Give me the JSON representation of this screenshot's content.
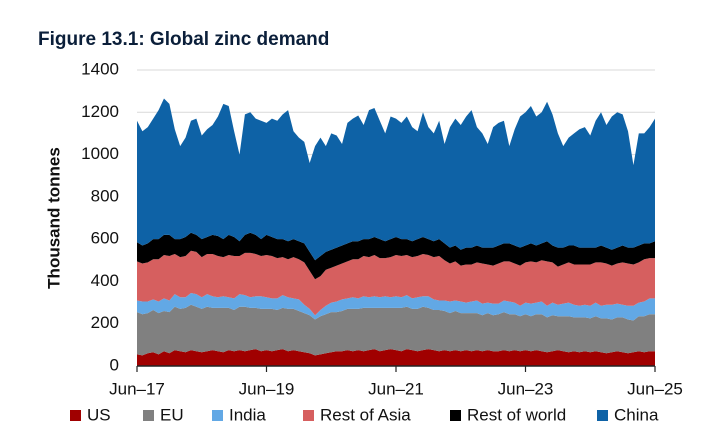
{
  "chart_data": {
    "type": "stacked-area",
    "title": "Figure 13.1: Global zinc demand",
    "y_label": "Thousand tonnes",
    "categories": [
      "Jun–17",
      null,
      null,
      null,
      null,
      null,
      null,
      null,
      null,
      null,
      null,
      null,
      null,
      null,
      null,
      null,
      null,
      null,
      null,
      null,
      null,
      null,
      null,
      null,
      "Jun–19",
      null,
      null,
      null,
      null,
      null,
      null,
      null,
      null,
      null,
      null,
      null,
      null,
      null,
      null,
      null,
      null,
      null,
      null,
      null,
      null,
      null,
      null,
      null,
      "Jun–21",
      null,
      null,
      null,
      null,
      null,
      null,
      null,
      null,
      null,
      null,
      null,
      null,
      null,
      null,
      null,
      null,
      null,
      null,
      null,
      null,
      null,
      null,
      null,
      "Jun–23",
      null,
      null,
      null,
      null,
      null,
      null,
      null,
      null,
      null,
      null,
      null,
      null,
      null,
      null,
      null,
      null,
      null,
      null,
      null,
      null,
      null,
      null,
      null,
      "Jun–25"
    ],
    "series": [
      {
        "name": "US",
        "color": "#a00000",
        "values": [
          55,
          50,
          60,
          65,
          55,
          70,
          60,
          75,
          70,
          65,
          75,
          70,
          65,
          70,
          75,
          70,
          65,
          75,
          70,
          75,
          70,
          75,
          80,
          70,
          75,
          70,
          75,
          80,
          70,
          75,
          70,
          65,
          60,
          50,
          55,
          60,
          65,
          70,
          70,
          75,
          70,
          75,
          70,
          75,
          80,
          70,
          75,
          80,
          75,
          70,
          80,
          75,
          70,
          75,
          80,
          75,
          70,
          75,
          70,
          75,
          70,
          75,
          70,
          75,
          70,
          75,
          70,
          70,
          75,
          70,
          75,
          70,
          75,
          70,
          75,
          70,
          65,
          70,
          75,
          70,
          65,
          70,
          65,
          70,
          65,
          70,
          65,
          60,
          65,
          70,
          65,
          60,
          65,
          70,
          65,
          70,
          70
        ]
      },
      {
        "name": "EU",
        "color": "#808080",
        "values": [
          200,
          195,
          190,
          200,
          195,
          190,
          195,
          205,
          200,
          210,
          215,
          210,
          205,
          210,
          200,
          205,
          210,
          200,
          195,
          205,
          210,
          200,
          195,
          200,
          195,
          200,
          190,
          195,
          200,
          195,
          190,
          185,
          180,
          170,
          180,
          185,
          190,
          185,
          190,
          195,
          200,
          195,
          205,
          200,
          195,
          205,
          200,
          195,
          200,
          205,
          200,
          195,
          200,
          205,
          195,
          190,
          195,
          185,
          180,
          185,
          180,
          175,
          180,
          175,
          170,
          175,
          170,
          175,
          180,
          175,
          170,
          165,
          170,
          165,
          170,
          175,
          165,
          170,
          160,
          165,
          170,
          160,
          165,
          160,
          160,
          165,
          160,
          165,
          155,
          160,
          165,
          160,
          150,
          165,
          170,
          175,
          175
        ]
      },
      {
        "name": "India",
        "color": "#62a8e5",
        "values": [
          55,
          60,
          55,
          50,
          55,
          60,
          55,
          60,
          55,
          50,
          55,
          60,
          55,
          60,
          55,
          50,
          55,
          50,
          55,
          60,
          55,
          50,
          55,
          60,
          55,
          50,
          55,
          60,
          55,
          50,
          55,
          40,
          30,
          20,
          30,
          40,
          45,
          50,
          55,
          50,
          55,
          50,
          55,
          50,
          55,
          50,
          55,
          50,
          55,
          50,
          55,
          50,
          55,
          50,
          55,
          50,
          45,
          50,
          55,
          50,
          55,
          50,
          55,
          60,
          55,
          50,
          55,
          50,
          55,
          60,
          55,
          50,
          55,
          60,
          55,
          60,
          55,
          60,
          55,
          60,
          65,
          60,
          55,
          60,
          60,
          65,
          60,
          65,
          70,
          65,
          60,
          65,
          70,
          65,
          70,
          75,
          75
        ]
      },
      {
        "name": "Rest of Asia",
        "color": "#d65f5f",
        "values": [
          185,
          180,
          185,
          190,
          200,
          205,
          210,
          190,
          190,
          195,
          200,
          200,
          190,
          190,
          200,
          195,
          185,
          200,
          200,
          180,
          200,
          210,
          200,
          190,
          200,
          200,
          190,
          180,
          180,
          195,
          190,
          200,
          180,
          170,
          160,
          170,
          165,
          170,
          170,
          175,
          180,
          185,
          190,
          190,
          195,
          185,
          180,
          190,
          195,
          195,
          190,
          195,
          195,
          200,
          195,
          200,
          210,
          190,
          180,
          185,
          170,
          180,
          175,
          180,
          190,
          180,
          180,
          190,
          185,
          190,
          185,
          190,
          190,
          200,
          190,
          195,
          210,
          190,
          180,
          185,
          190,
          190,
          195,
          190,
          195,
          190,
          205,
          195,
          185,
          190,
          200,
          200,
          195,
          190,
          200,
          190,
          190
        ]
      },
      {
        "name": "Rest of world",
        "color": "#000000",
        "values": [
          90,
          85,
          90,
          95,
          95,
          95,
          100,
          70,
          85,
          90,
          85,
          80,
          85,
          80,
          90,
          95,
          85,
          95,
          90,
          70,
          85,
          95,
          90,
          80,
          95,
          90,
          90,
          85,
          85,
          85,
          85,
          90,
          90,
          90,
          95,
          85,
          85,
          85,
          85,
          85,
          85,
          85,
          80,
          85,
          85,
          90,
          80,
          85,
          85,
          80,
          75,
          75,
          80,
          80,
          75,
          75,
          80,
          80,
          75,
          75,
          75,
          80,
          80,
          80,
          75,
          80,
          85,
          85,
          85,
          85,
          85,
          85,
          80,
          85,
          80,
          80,
          95,
          80,
          90,
          80,
          80,
          90,
          80,
          80,
          80,
          70,
          80,
          75,
          75,
          75,
          80,
          75,
          80,
          80,
          75,
          70,
          80
        ]
      },
      {
        "name": "China",
        "color": "#0e62a6",
        "values": [
          575,
          540,
          550,
          570,
          610,
          645,
          620,
          520,
          440,
          470,
          530,
          550,
          490,
          510,
          520,
          565,
          640,
          610,
          500,
          410,
          570,
          570,
          550,
          560,
          530,
          560,
          560,
          590,
          620,
          510,
          490,
          480,
          420,
          540,
          560,
          500,
          550,
          530,
          480,
          570,
          580,
          595,
          540,
          610,
          610,
          560,
          510,
          580,
          560,
          550,
          580,
          540,
          510,
          590,
          530,
          510,
          560,
          470,
          570,
          600,
          590,
          620,
          650,
          560,
          540,
          490,
          570,
          580,
          580,
          460,
          550,
          620,
          630,
          650,
          610,
          620,
          660,
          620,
          540,
          480,
          510,
          530,
          560,
          570,
          530,
          600,
          630,
          580,
          630,
          640,
          620,
          550,
          390,
          530,
          520,
          550,
          580
        ]
      }
    ],
    "ylim": [
      0,
      1400
    ],
    "yticks": [
      0,
      200,
      400,
      600,
      800,
      1000,
      1200,
      1400
    ],
    "grid": true
  }
}
